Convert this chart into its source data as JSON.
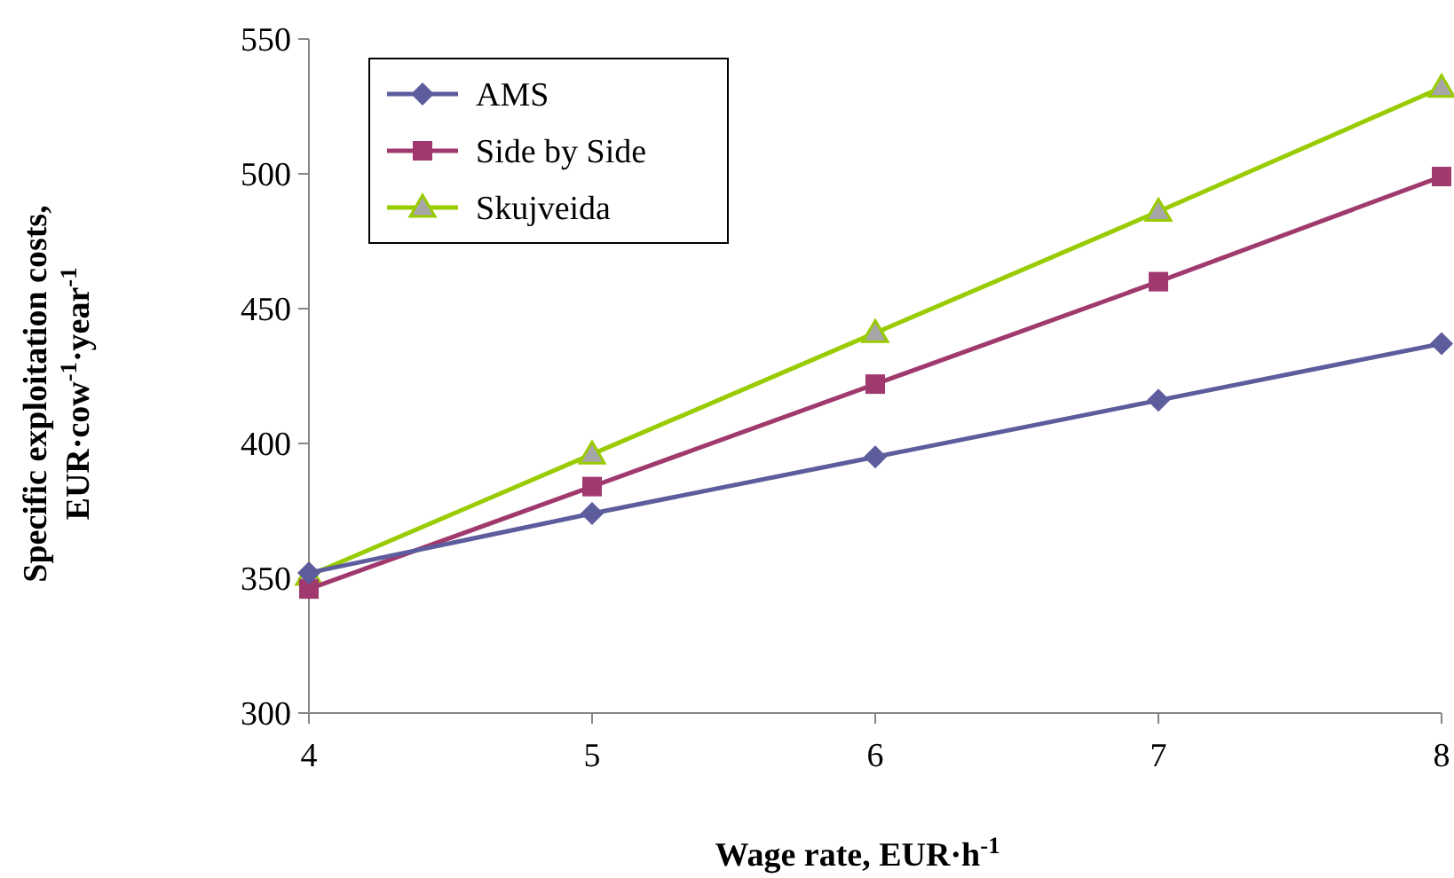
{
  "chart_data": {
    "type": "line",
    "xlabel": "Wage rate, EUR·h$^{-1}$",
    "ylabel": "Specific exploitation costs, EUR·cow$^{-1}$·year$^{-1}$",
    "x": [
      4,
      5,
      6,
      7,
      8
    ],
    "series": [
      {
        "name": "AMS",
        "color": "#5d5d9e",
        "marker": "diamond",
        "values": [
          352,
          374,
          395,
          416,
          437
        ]
      },
      {
        "name": "Side by Side",
        "color": "#a03a6e",
        "marker": "square",
        "values": [
          346,
          384,
          422,
          460,
          499
        ]
      },
      {
        "name": "Skujveida",
        "color": "#99cc00",
        "marker": "triangle",
        "values": [
          351,
          396,
          441,
          486,
          532
        ]
      }
    ],
    "xlim": [
      4,
      8
    ],
    "xticks": [
      4,
      5,
      6,
      7,
      8
    ],
    "ylim": [
      300,
      550
    ],
    "yticks": [
      300,
      350,
      400,
      450,
      500,
      550
    ],
    "grid": false,
    "legend": "top left",
    "line_style": "solid"
  }
}
